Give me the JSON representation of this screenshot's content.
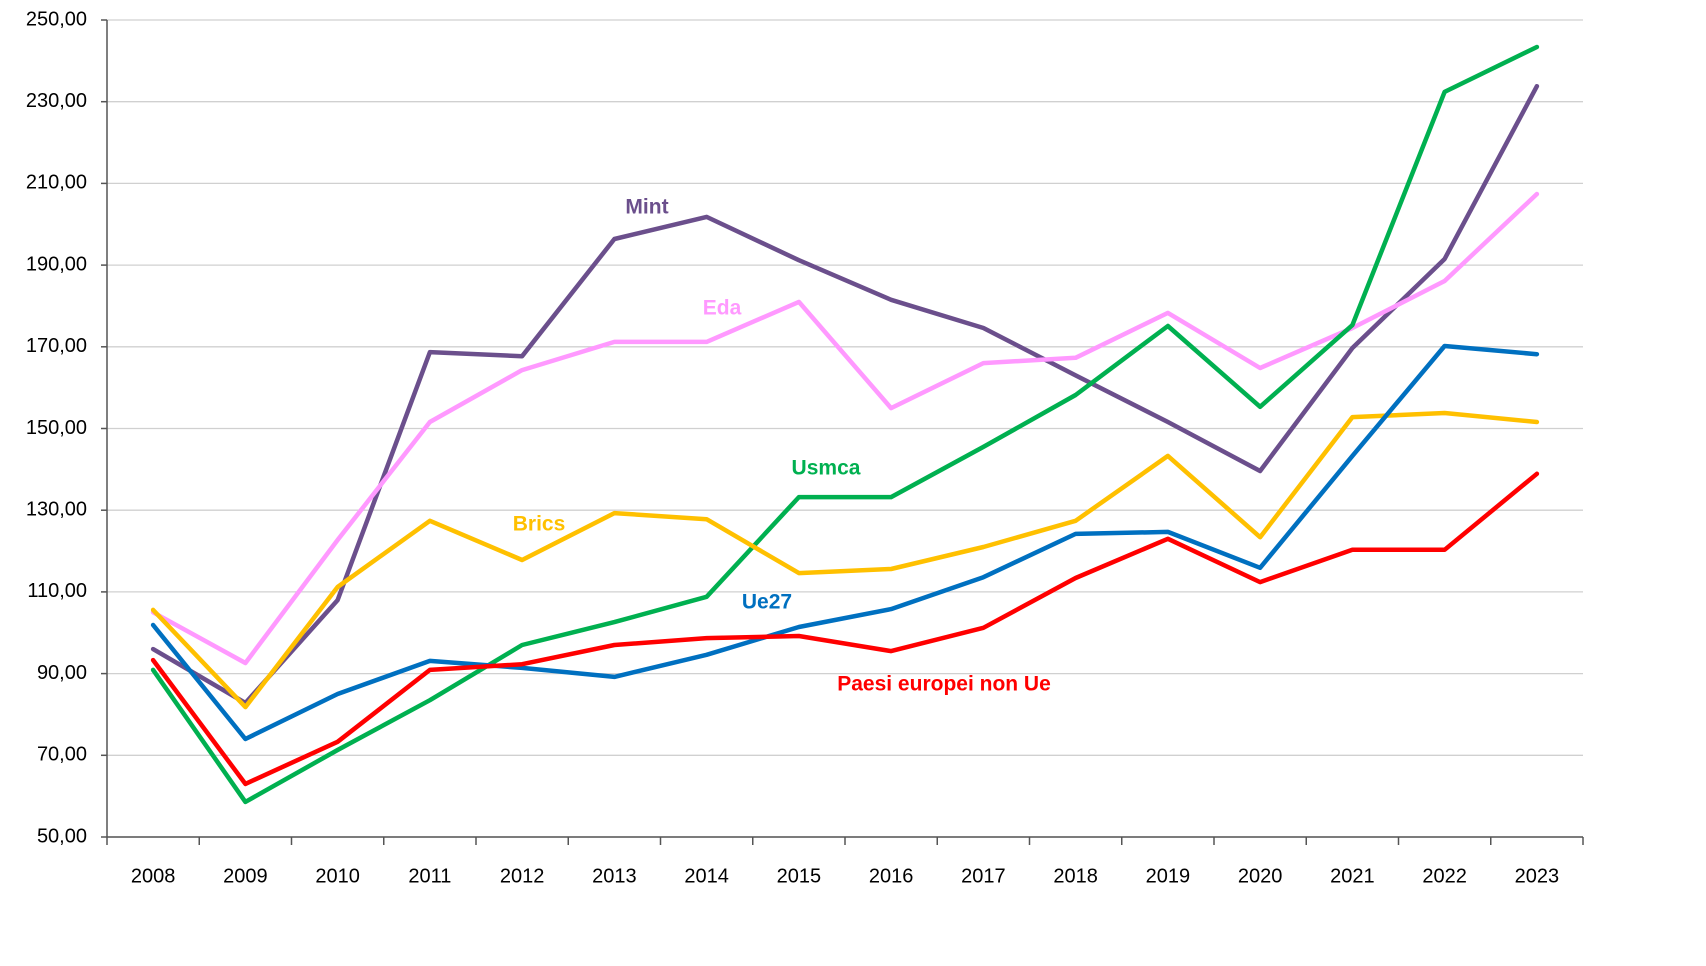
{
  "chart_data": {
    "type": "line",
    "categories": [
      "2008",
      "2009",
      "2010",
      "2011",
      "2012",
      "2013",
      "2014",
      "2015",
      "2016",
      "2017",
      "2018",
      "2019",
      "2020",
      "2021",
      "2022",
      "2023"
    ],
    "series": [
      {
        "name": "Mint",
        "color": "#6b4f8c",
        "values": [
          96,
          82.8,
          108,
          168.7,
          167.7,
          196.4,
          201.8,
          191.2,
          181.5,
          174.6,
          163,
          151.6,
          139.6,
          169.7,
          191.5,
          233.8
        ]
      },
      {
        "name": "Eda",
        "color": "#ff99ff",
        "values": [
          105,
          92.6,
          122.7,
          151.6,
          164.3,
          171.2,
          171.2,
          181,
          155,
          166,
          167.3,
          178.3,
          164.8,
          174.6,
          186.1,
          207.4
        ]
      },
      {
        "name": "Usmca",
        "color": "#00b050",
        "values": [
          90.9,
          58.6,
          71.3,
          83.5,
          97,
          102.6,
          108.8,
          133.2,
          133.2,
          145.5,
          158.2,
          175.1,
          155.3,
          175.3,
          232.4,
          243.4
        ]
      },
      {
        "name": "Brics",
        "color": "#ffc000",
        "values": [
          105.6,
          81.8,
          111.2,
          127.4,
          117.8,
          129.3,
          127.8,
          114.6,
          115.6,
          121,
          127.4,
          143.3,
          123.4,
          152.8,
          153.8,
          151.6
        ]
      },
      {
        "name": "Ue27",
        "color": "#0070c0",
        "values": [
          101.9,
          74,
          85,
          93.1,
          91.4,
          89.2,
          94.6,
          101.4,
          105.8,
          113.6,
          124.2,
          124.7,
          115.9,
          143.3,
          170.2,
          168.2
        ]
      },
      {
        "name": "Paesi europei non Ue",
        "color": "#ff0000",
        "values": [
          93.3,
          63,
          73.3,
          90.9,
          92.3,
          97,
          98.7,
          99.2,
          95.5,
          101.2,
          113.4,
          123,
          112.4,
          120.3,
          120.3,
          138.9
        ]
      }
    ],
    "ylim": [
      50,
      250
    ],
    "yticks": [
      {
        "value": 50,
        "label": "50,00"
      },
      {
        "value": 70,
        "label": "70,00"
      },
      {
        "value": 90,
        "label": "90,00"
      },
      {
        "value": 110,
        "label": "110,00"
      },
      {
        "value": 130,
        "label": "130,00"
      },
      {
        "value": 150,
        "label": "150,00"
      },
      {
        "value": 170,
        "label": "170,00"
      },
      {
        "value": 190,
        "label": "190,00"
      },
      {
        "value": 210,
        "label": "210,00"
      },
      {
        "value": 230,
        "label": "230,00"
      },
      {
        "value": 250,
        "label": "250,00"
      }
    ],
    "grid": true
  }
}
